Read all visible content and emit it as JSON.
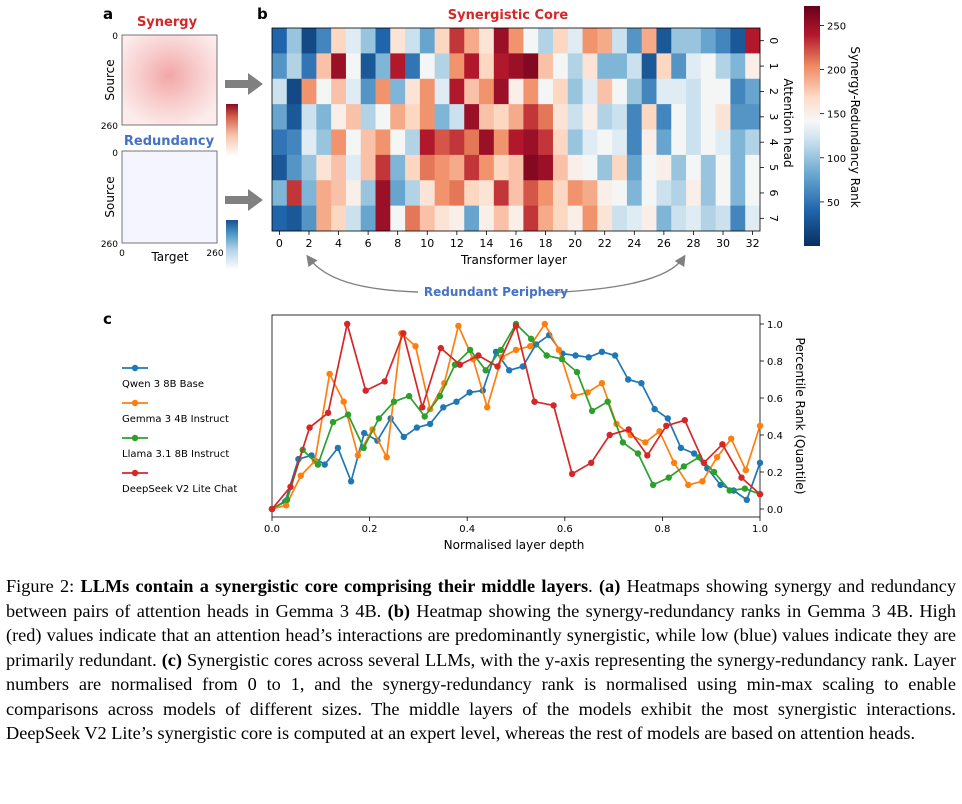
{
  "panel_a": {
    "label": "a",
    "synergy_title": "Synergy",
    "redundancy_title": "Redundancy",
    "ylabel": "Source",
    "xlabel": "Target",
    "ticks": [
      "0",
      "260"
    ],
    "colors": {
      "synergy": "#d62728",
      "redundancy": "#4472c4"
    }
  },
  "panel_b": {
    "label": "b",
    "title": "Synergistic Core",
    "xlabel": "Transformer layer",
    "ylabel": "Attention head",
    "colorbar_label": "Synergy-Redundancy Rank",
    "colorbar_ticks": [
      "50",
      "100",
      "150",
      "200",
      "250"
    ],
    "redundant_label": "Redundant Periphery"
  },
  "panel_c": {
    "label": "c",
    "xlabel": "Normalised layer depth",
    "ylabel": "Percentile Rank (Quantile)"
  },
  "chart_data": [
    {
      "type": "heatmap",
      "title": "Synergistic Core",
      "xlabel": "Transformer layer",
      "ylabel": "Attention head",
      "x_ticks": [
        "0",
        "2",
        "4",
        "6",
        "8",
        "10",
        "12",
        "14",
        "16",
        "18",
        "20",
        "22",
        "24",
        "26",
        "28",
        "30",
        "32"
      ],
      "y_ticks": [
        "0",
        "1",
        "2",
        "3",
        "4",
        "5",
        "6",
        "7"
      ],
      "colorbar": {
        "label": "Synergy-Redundancy Rank",
        "range": [
          0,
          272
        ],
        "ticks": [
          50,
          100,
          150,
          200,
          250
        ]
      },
      "values": [
        [
          40,
          100,
          20,
          60,
          170,
          130,
          100,
          40,
          160,
          120,
          80,
          170,
          230,
          190,
          160,
          250,
          200,
          140,
          110,
          170,
          130,
          200,
          190,
          120,
          70,
          190,
          30,
          100,
          100,
          80,
          60,
          30,
          240
        ],
        [
          70,
          110,
          50,
          180,
          250,
          140,
          30,
          90,
          240,
          50,
          140,
          110,
          200,
          240,
          170,
          240,
          250,
          260,
          180,
          140,
          110,
          160,
          90,
          90,
          120,
          30,
          170,
          70,
          130,
          140,
          110,
          90,
          150
        ],
        [
          120,
          20,
          200,
          140,
          180,
          130,
          70,
          200,
          90,
          160,
          200,
          130,
          240,
          180,
          200,
          250,
          150,
          200,
          140,
          170,
          100,
          130,
          180,
          140,
          100,
          60,
          130,
          130,
          120,
          140,
          140,
          60,
          80
        ],
        [
          80,
          30,
          120,
          90,
          150,
          180,
          110,
          140,
          190,
          170,
          200,
          90,
          120,
          250,
          180,
          170,
          190,
          230,
          210,
          160,
          120,
          150,
          110,
          120,
          60,
          170,
          60,
          140,
          120,
          140,
          160,
          70,
          70
        ],
        [
          50,
          60,
          130,
          100,
          200,
          140,
          180,
          200,
          140,
          110,
          240,
          220,
          230,
          210,
          250,
          200,
          240,
          250,
          230,
          170,
          100,
          130,
          140,
          130,
          60,
          150,
          80,
          140,
          120,
          140,
          130,
          90,
          110
        ],
        [
          30,
          70,
          100,
          160,
          180,
          130,
          180,
          230,
          90,
          170,
          210,
          200,
          190,
          230,
          200,
          170,
          180,
          260,
          250,
          180,
          150,
          140,
          100,
          170,
          80,
          140,
          150,
          100,
          140,
          100,
          140,
          90,
          140
        ],
        [
          90,
          230,
          90,
          190,
          180,
          150,
          100,
          250,
          80,
          110,
          160,
          200,
          210,
          170,
          160,
          230,
          180,
          220,
          200,
          170,
          200,
          190,
          150,
          140,
          90,
          140,
          120,
          110,
          150,
          100,
          140,
          90,
          140
        ],
        [
          40,
          30,
          70,
          190,
          170,
          120,
          80,
          250,
          140,
          210,
          180,
          160,
          150,
          80,
          150,
          180,
          150,
          230,
          190,
          170,
          150,
          200,
          160,
          120,
          130,
          150,
          90,
          120,
          130,
          110,
          120,
          60,
          130
        ]
      ]
    },
    {
      "type": "line",
      "xlabel": "Normalised layer depth",
      "ylabel": "Percentile Rank (Quantile)",
      "xlim": [
        0.0,
        1.0
      ],
      "ylim": [
        0.0,
        1.0
      ],
      "x_ticks": [
        "0.0",
        "0.2",
        "0.4",
        "0.6",
        "0.8",
        "1.0"
      ],
      "y_ticks": [
        "0.0",
        "0.2",
        "0.4",
        "0.6",
        "0.8",
        "1.0"
      ],
      "legend_position": "left",
      "series": [
        {
          "name": "Qwen 3 8B Base",
          "color": "#1f77b4",
          "x": [
            0.0,
            0.027,
            0.054,
            0.081,
            0.108,
            0.135,
            0.162,
            0.189,
            0.216,
            0.243,
            0.27,
            0.297,
            0.324,
            0.351,
            0.378,
            0.405,
            0.432,
            0.459,
            0.486,
            0.514,
            0.541,
            0.568,
            0.595,
            0.622,
            0.649,
            0.676,
            0.703,
            0.73,
            0.757,
            0.784,
            0.811,
            0.838,
            0.865,
            0.892,
            0.919,
            0.946,
            0.973,
            1.0
          ],
          "y": [
            0.0,
            0.04,
            0.27,
            0.29,
            0.24,
            0.33,
            0.15,
            0.41,
            0.37,
            0.49,
            0.39,
            0.44,
            0.46,
            0.55,
            0.58,
            0.63,
            0.64,
            0.85,
            0.75,
            0.77,
            0.89,
            0.94,
            0.84,
            0.83,
            0.82,
            0.85,
            0.83,
            0.7,
            0.68,
            0.54,
            0.49,
            0.33,
            0.3,
            0.22,
            0.13,
            0.1,
            0.05,
            0.25
          ]
        },
        {
          "name": "Gemma 3 4B Instruct",
          "color": "#ff7f0e",
          "x": [
            0.0,
            0.029,
            0.059,
            0.088,
            0.118,
            0.147,
            0.176,
            0.206,
            0.235,
            0.265,
            0.294,
            0.324,
            0.353,
            0.382,
            0.412,
            0.441,
            0.471,
            0.5,
            0.529,
            0.559,
            0.588,
            0.618,
            0.647,
            0.676,
            0.706,
            0.735,
            0.765,
            0.794,
            0.824,
            0.853,
            0.882,
            0.912,
            0.941,
            0.971,
            1.0
          ],
          "y": [
            0.0,
            0.02,
            0.18,
            0.26,
            0.73,
            0.58,
            0.29,
            0.43,
            0.28,
            0.95,
            0.88,
            0.54,
            0.68,
            0.99,
            0.81,
            0.55,
            0.82,
            0.86,
            0.88,
            1.0,
            0.86,
            0.61,
            0.63,
            0.68,
            0.46,
            0.4,
            0.36,
            0.42,
            0.25,
            0.13,
            0.15,
            0.28,
            0.38,
            0.21,
            0.45
          ]
        },
        {
          "name": "Llama 3.1 8B Instruct",
          "color": "#2ca02c",
          "x": [
            0.0,
            0.031,
            0.063,
            0.094,
            0.125,
            0.156,
            0.188,
            0.219,
            0.25,
            0.281,
            0.313,
            0.344,
            0.375,
            0.406,
            0.438,
            0.469,
            0.5,
            0.531,
            0.563,
            0.594,
            0.625,
            0.656,
            0.688,
            0.719,
            0.75,
            0.781,
            0.813,
            0.844,
            0.875,
            0.906,
            0.938,
            0.969,
            1.0
          ],
          "y": [
            0.0,
            0.05,
            0.32,
            0.24,
            0.47,
            0.51,
            0.33,
            0.49,
            0.58,
            0.61,
            0.5,
            0.61,
            0.78,
            0.86,
            0.75,
            0.86,
            1.0,
            0.92,
            0.83,
            0.81,
            0.74,
            0.53,
            0.58,
            0.36,
            0.3,
            0.13,
            0.17,
            0.23,
            0.28,
            0.2,
            0.1,
            0.11,
            0.08
          ]
        },
        {
          "name": "DeepSeek V2 Lite Chat",
          "color": "#d62728",
          "x": [
            0.0,
            0.038,
            0.077,
            0.115,
            0.154,
            0.192,
            0.231,
            0.269,
            0.308,
            0.346,
            0.385,
            0.423,
            0.462,
            0.5,
            0.538,
            0.577,
            0.615,
            0.654,
            0.692,
            0.731,
            0.769,
            0.808,
            0.846,
            0.885,
            0.923,
            0.962,
            1.0
          ],
          "y": [
            0.0,
            0.12,
            0.44,
            0.52,
            1.0,
            0.64,
            0.69,
            0.95,
            0.55,
            0.87,
            0.78,
            0.83,
            0.77,
            0.99,
            0.58,
            0.56,
            0.19,
            0.25,
            0.4,
            0.43,
            0.29,
            0.45,
            0.48,
            0.25,
            0.35,
            0.17,
            0.08
          ]
        }
      ]
    }
  ],
  "caption": {
    "prefix": "Figure 2: ",
    "bold": "LLMs contain a synergistic core comprising their middle layers",
    "text_1": ". ",
    "a_label": "(a)",
    "text_a": " Heatmaps showing synergy and redundancy between pairs of attention heads in Gemma 3 4B. ",
    "b_label": "(b)",
    "text_b": " Heatmap showing the synergy-redundancy ranks in Gemma 3 4B. High (red) values indicate that an attention head’s interactions are predominantly synergistic, while low (blue) values indicate they are primarily redundant. ",
    "c_label": "(c)",
    "text_c": " Synergistic cores across several LLMs, with the y-axis representing the synergy-redundancy rank. Layer numbers are normalised from 0 to 1, and the synergy-redundancy rank is normalised using min-max scaling to enable comparisons across models of different sizes. The middle layers of the models exhibit the most synergistic interactions. DeepSeek V2 Lite’s synergistic core is computed at an expert level, whereas the rest of models are based on attention heads."
  }
}
